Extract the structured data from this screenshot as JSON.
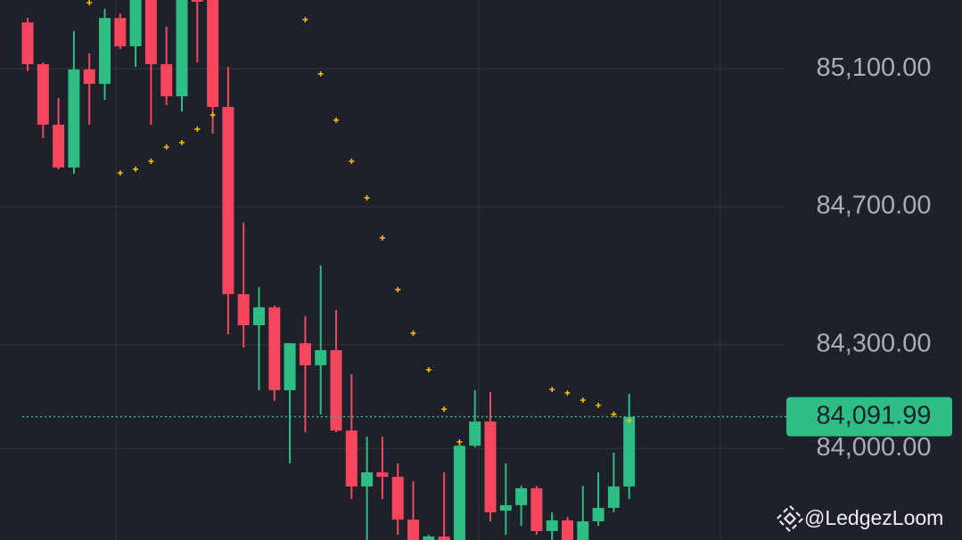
{
  "chart_data": {
    "type": "candlestick",
    "open": [
      85234,
      85113,
      84938,
      84814,
      85098,
      85056,
      85247,
      85165,
      85299,
      85113,
      85020,
      85299,
      85299,
      84989,
      84447,
      84357,
      84409,
      84169,
      84305,
      84241,
      84285,
      84052,
      83890,
      83931,
      83918,
      83794,
      83735,
      83745,
      83735,
      84008,
      84078,
      83820,
      83836,
      83885,
      83761,
      83792,
      83735,
      83789,
      83828,
      83890
    ],
    "high": [
      85247,
      85118,
      85015,
      85209,
      85144,
      85273,
      85260,
      85312,
      85312,
      85222,
      85312,
      85312,
      85312,
      85105,
      84654,
      84468,
      84414,
      84305,
      84383,
      84530,
      84401,
      84215,
      84034,
      84034,
      83957,
      83905,
      83750,
      83931,
      84014,
      84169,
      84163,
      83957,
      83892,
      83892,
      83815,
      83802,
      83892,
      83931,
      83988,
      84158
    ],
    "low": [
      85093,
      84899,
      84809,
      84796,
      84938,
      85010,
      85157,
      85105,
      84938,
      84994,
      84976,
      85118,
      84912,
      84331,
      84292,
      84169,
      84138,
      83957,
      84047,
      84099,
      84047,
      83854,
      83735,
      83854,
      83750,
      83725,
      83725,
      83725,
      83735,
      84003,
      83789,
      83750,
      83776,
      83750,
      83735,
      83725,
      83735,
      83776,
      83815,
      83854
    ],
    "close": [
      85113,
      84938,
      84814,
      85098,
      85056,
      85247,
      85165,
      85299,
      85113,
      85020,
      85299,
      85294,
      84989,
      84447,
      84357,
      84409,
      84169,
      84305,
      84241,
      84285,
      84052,
      83890,
      83931,
      83918,
      83794,
      83735,
      83745,
      83735,
      84008,
      84078,
      83815,
      83836,
      83885,
      83761,
      83792,
      83735,
      83789,
      83828,
      83890,
      84091.99
    ],
    "up_color": "#2ebd85",
    "down_color": "#f6465d",
    "sar": {
      "color": "#f0b90b",
      "values": [
        null,
        null,
        null,
        null,
        85291,
        null,
        84798,
        84809,
        84832,
        84873,
        84886,
        84925,
        84966,
        null,
        null,
        null,
        null,
        null,
        85242,
        85085,
        84951,
        84832,
        84726,
        84610,
        84460,
        84334,
        84228,
        84114,
        84019,
        null,
        null,
        null,
        null,
        null,
        84171,
        84161,
        84140,
        84125,
        84099,
        84081
      ]
    },
    "ylim": [
      83735,
      85299
    ],
    "yticks": [
      {
        "value": 84000,
        "label": "84,000.00"
      },
      {
        "value": 84300,
        "label": "84,300.00"
      },
      {
        "value": 84700,
        "label": "84,700.00"
      },
      {
        "value": 85100,
        "label": "85,100.00"
      }
    ],
    "grid": true,
    "current_price": {
      "value": 84091.99,
      "label": "84,091.99"
    },
    "watermark": "@LedgezLoom"
  }
}
